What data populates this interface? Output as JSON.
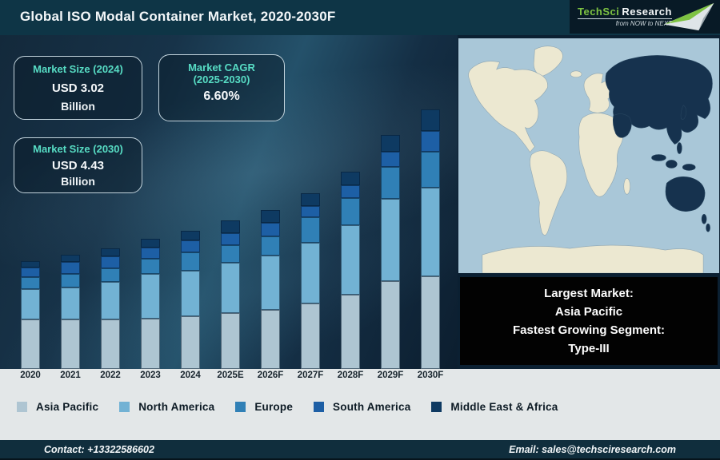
{
  "header": {
    "title": "Global ISO Modal Container Market, 2020-2030F"
  },
  "logo": {
    "brand_primary": "TechSci",
    "brand_secondary": "Research",
    "tagline": "from NOW to NEXT",
    "brand_green": "#7dc242"
  },
  "stats": {
    "size2024": {
      "label": "Market Size (2024)",
      "value": "USD 3.02",
      "unit": "Billion"
    },
    "cagr": {
      "label": "Market CAGR",
      "label2": "(2025-2030)",
      "value": "6.60%"
    },
    "size2030": {
      "label": "Market Size (2030)",
      "value": "USD 4.43",
      "unit": "Billion"
    }
  },
  "chart_data": {
    "type": "bar",
    "stacked": true,
    "title": "Global ISO Modal Container Market, 2020-2030F",
    "xlabel": "",
    "ylabel": "",
    "grid": false,
    "legend_position": "bottom",
    "value_units": "relative segment height in pixels (chart has no y-axis; stated totals: 2024 = USD 3.02 Billion, 2030 = USD 4.43 Billion)",
    "categories": [
      "2020",
      "2021",
      "2022",
      "2023",
      "2024",
      "2025E",
      "2026F",
      "2027F",
      "2028F",
      "2029F",
      "2030F"
    ],
    "series": [
      {
        "name": "Asia Pacific",
        "color": "#aec5d2",
        "values": [
          62,
          62,
          62,
          63,
          66,
          70,
          74,
          82,
          93,
          110,
          116
        ]
      },
      {
        "name": "North America",
        "color": "#72b2d4",
        "values": [
          38,
          40,
          47,
          56,
          57,
          63,
          68,
          76,
          87,
          103,
          111
        ]
      },
      {
        "name": "Europe",
        "color": "#3080b6",
        "values": [
          15,
          17,
          17,
          19,
          23,
          22,
          24,
          32,
          34,
          40,
          45
        ]
      },
      {
        "name": "South America",
        "color": "#1d5fa5",
        "values": [
          12,
          15,
          15,
          14,
          15,
          15,
          17,
          14,
          16,
          19,
          26
        ]
      },
      {
        "name": "Middle East & Africa",
        "color": "#0e3a62",
        "values": [
          8,
          9,
          10,
          11,
          12,
          16,
          16,
          16,
          17,
          21,
          27
        ]
      }
    ]
  },
  "map": {
    "highlighted_region": "Asia Pacific",
    "ocean_color": "#a9c7d8",
    "land_color": "#ece8d1",
    "highlight_color": "#16324e"
  },
  "highlight_box": {
    "line1": "Largest Market:",
    "line2": "Asia Pacific",
    "line3": "Fastest Growing Segment:",
    "line4": "Type-III"
  },
  "footer": {
    "contact": "Contact: +13322586602",
    "email": "Email: sales@techsciresearch.com"
  }
}
